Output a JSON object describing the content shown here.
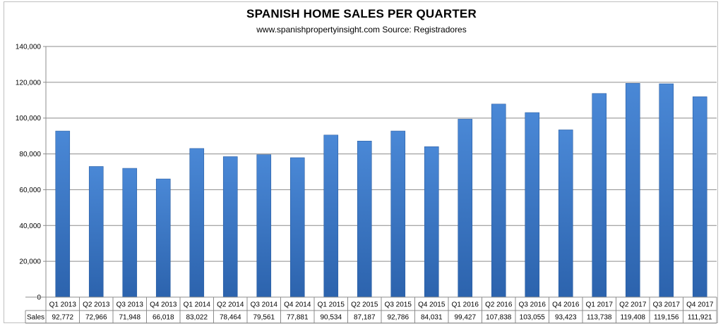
{
  "chart_data": {
    "type": "bar",
    "title": "SPANISH HOME SALES PER QUARTER",
    "subtitle": "www.spanishpropertyinsight.com Source: Registradores",
    "categories": [
      "Q1 2013",
      "Q2 2013",
      "Q3 2013",
      "Q4 2013",
      "Q1 2014",
      "Q2 2014",
      "Q3 2014",
      "Q4 2014",
      "Q1 2015",
      "Q2 2015",
      "Q3 2015",
      "Q4 2015",
      "Q1 2016",
      "Q2 2016",
      "Q3 2016",
      "Q4 2016",
      "Q1 2017",
      "Q2 2017",
      "Q3 2017",
      "Q4 2017"
    ],
    "series": [
      {
        "name": "Sales",
        "values": [
          92772,
          72966,
          71948,
          66018,
          83022,
          78464,
          79561,
          77881,
          90534,
          87187,
          92786,
          84031,
          99427,
          107838,
          103055,
          93423,
          113738,
          119408,
          119156,
          111921
        ],
        "labels": [
          "92,772",
          "72,966",
          "71,948",
          "66,018",
          "83,022",
          "78,464",
          "79,561",
          "77,881",
          "90,534",
          "87,187",
          "92,786",
          "84,031",
          "99,427",
          "107,838",
          "103,055",
          "93,423",
          "113,738",
          "119,408",
          "119,156",
          "111,921"
        ]
      }
    ],
    "ylim": [
      0,
      140000
    ],
    "yticks": [
      0,
      20000,
      40000,
      60000,
      80000,
      100000,
      120000,
      140000
    ],
    "ytick_labels": [
      "0",
      "20,000",
      "40,000",
      "60,000",
      "80,000",
      "100,000",
      "120,000",
      "140,000"
    ],
    "xlabel": "",
    "ylabel": "",
    "grid": true,
    "data_table": true,
    "bar_color": "#3a78c8"
  }
}
